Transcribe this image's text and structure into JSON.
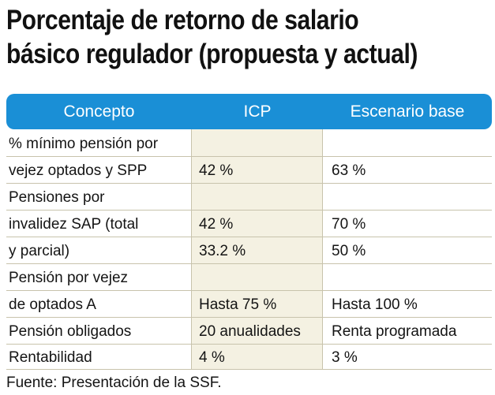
{
  "title": {
    "line1": "Porcentaje de retorno de salario",
    "line2": "básico regulador (propuesta y actual)"
  },
  "table": {
    "headers": [
      "Concepto",
      "ICP",
      "Escenario base"
    ],
    "rows": [
      [
        "% mínimo pensión por",
        "",
        ""
      ],
      [
        "vejez optados y SPP",
        "42 %",
        "63 %"
      ],
      [
        "Pensiones por",
        "",
        ""
      ],
      [
        "invalidez SAP (total",
        "42 %",
        "70 %"
      ],
      [
        "y parcial)",
        "33.2 %",
        "50 %"
      ],
      [
        "Pensión por vejez",
        "",
        ""
      ],
      [
        "de optados A",
        "Hasta 75 %",
        "Hasta 100 %"
      ],
      [
        "Pensión obligados",
        "20 anualidades",
        "Renta programada"
      ],
      [
        "Rentabilidad",
        "4 %",
        "3 %"
      ]
    ]
  },
  "source": "Fuente: Presentación de la SSF.",
  "colors": {
    "header_bg": "#1a8fd6",
    "icp_column_bg": "#f4f1e2",
    "rule": "#c8c3ac"
  }
}
